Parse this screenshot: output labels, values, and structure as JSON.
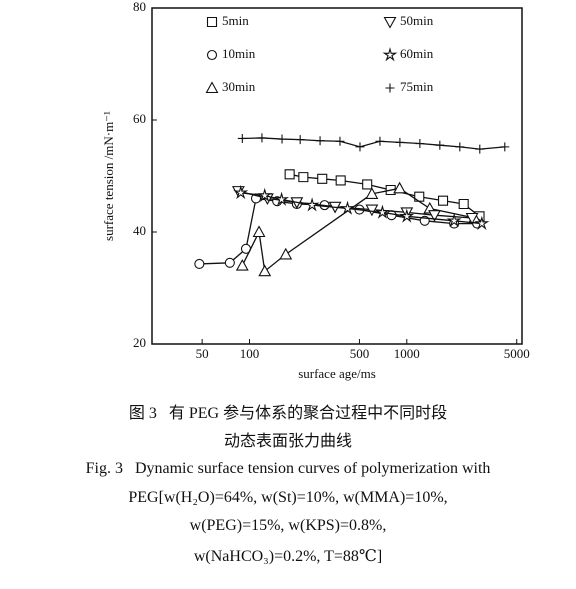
{
  "chart_data": {
    "type": "line",
    "x_label": "surface age/ms",
    "y_label": "surface tension /mN·m⁻¹",
    "xscale": "log",
    "xlim": [
      24,
      5400
    ],
    "ylim": [
      20,
      80
    ],
    "xticks": [
      50,
      100,
      500,
      1000,
      5000
    ],
    "yticks": [
      20,
      40,
      60,
      80
    ],
    "series": [
      {
        "name": "5min",
        "marker": "square",
        "color": "#111",
        "x": [
          180,
          220,
          290,
          380,
          560,
          790,
          1200,
          1700,
          2300,
          2900
        ],
        "values": [
          50.3,
          49.8,
          49.5,
          49.2,
          48.5,
          47.5,
          46.3,
          45.6,
          45,
          42.8
        ]
      },
      {
        "name": "10min",
        "marker": "circle",
        "color": "#111",
        "x": [
          48,
          75,
          95,
          110,
          150,
          200,
          300,
          500,
          800,
          1300,
          2000,
          2800
        ],
        "values": [
          34.3,
          34.5,
          37,
          46,
          45.5,
          45,
          44.8,
          44,
          43,
          42,
          41.5,
          41.5
        ]
      },
      {
        "name": "30min",
        "marker": "triangle",
        "color": "#111",
        "x": [
          90,
          115,
          125,
          170,
          600,
          900,
          1400,
          2700
        ],
        "values": [
          34,
          40,
          33,
          36,
          46.8,
          47.8,
          44.2,
          42.5
        ]
      },
      {
        "name": "50min",
        "marker": "down-triangle",
        "color": "#111",
        "x": [
          85,
          130,
          200,
          350,
          600,
          1000,
          1500,
          2600
        ],
        "values": [
          47.3,
          46,
          45.3,
          44.5,
          44,
          43.5,
          43,
          42.5
        ]
      },
      {
        "name": "60min",
        "marker": "star",
        "color": "#111",
        "x": [
          88,
          125,
          160,
          250,
          420,
          700,
          1000,
          2000,
          3000
        ],
        "values": [
          47,
          46.5,
          45.8,
          44.8,
          44.2,
          43.5,
          42.8,
          42,
          41.5
        ]
      },
      {
        "name": "75min",
        "marker": "plus",
        "color": "#111",
        "x": [
          90,
          120,
          161,
          210,
          281,
          376,
          504,
          675,
          904,
          1211,
          1622,
          2173,
          2911,
          4198
        ],
        "values": [
          56.7,
          56.8,
          56.6,
          56.5,
          56.3,
          56.2,
          55.2,
          56.2,
          56,
          55.8,
          55.5,
          55.2,
          54.8,
          55.2
        ]
      }
    ]
  },
  "caption": [
    "图 3   有 PEG 参与体系的聚合过程中不同时段",
    "动态表面张力曲线",
    "Fig. 3   Dynamic surface tension curves of polymerization with",
    "PEG[w(H₂O)=64%, w(St)=10%, w(MMA)=10%,",
    "w(PEG)=15%, w(KPS)=0.8%,",
    "w(NaHCO₃)=0.2%, T=88℃]"
  ]
}
